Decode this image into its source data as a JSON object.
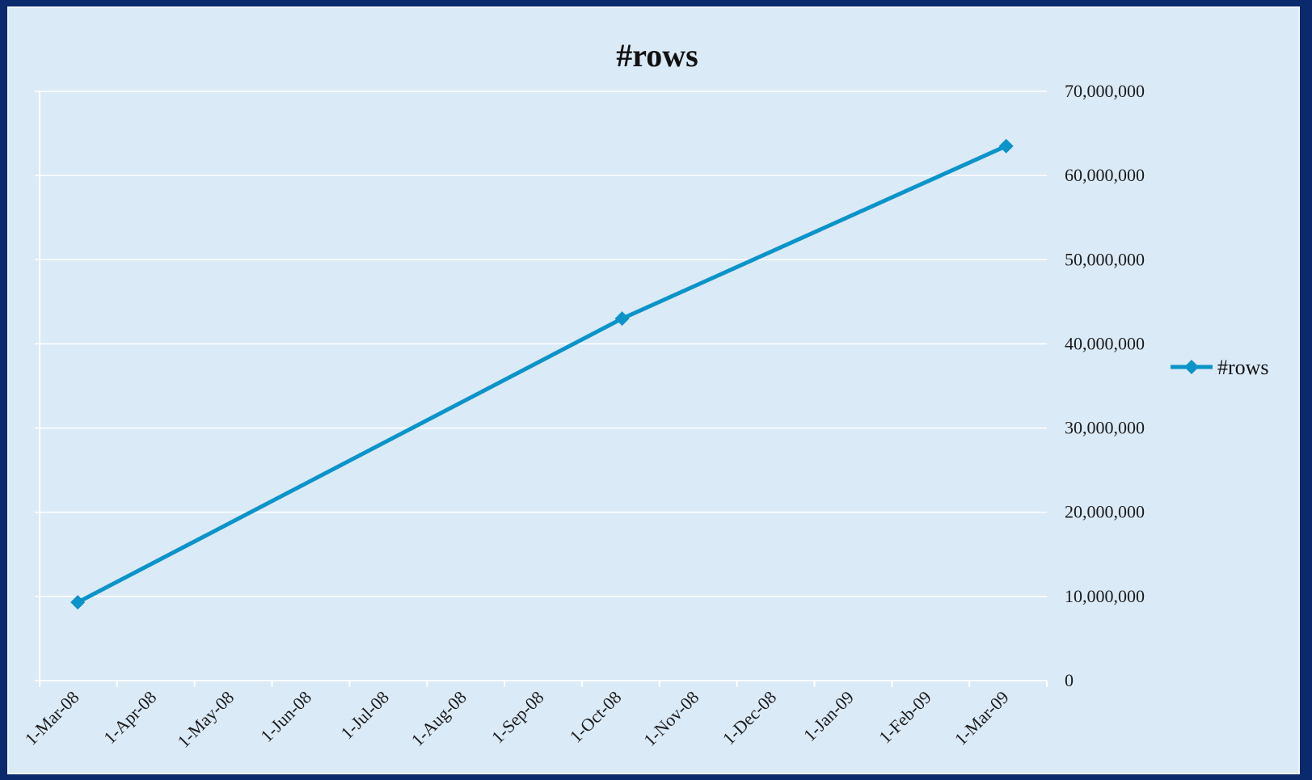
{
  "chart_data": {
    "type": "line",
    "title": "#rows",
    "xlabel": "",
    "ylabel": "",
    "x_ticks": [
      "1-Mar-08",
      "1-Apr-08",
      "1-May-08",
      "1-Jun-08",
      "1-Jul-08",
      "1-Aug-08",
      "1-Sep-08",
      "1-Oct-08",
      "1-Nov-08",
      "1-Dec-08",
      "1-Jan-09",
      "1-Feb-09",
      "1-Mar-09"
    ],
    "y_ticks": [
      "0",
      "10,000,000",
      "20,000,000",
      "30,000,000",
      "40,000,000",
      "50,000,000",
      "60,000,000",
      "70,000,000"
    ],
    "ylim": [
      0,
      70000000
    ],
    "y_axis_position": "right",
    "grid": true,
    "legend_position": "right",
    "series": [
      {
        "name": "#rows",
        "color": "#0a94c9",
        "marker": "diamond",
        "points": [
          {
            "x": "2008-03-16",
            "y": 9300000
          },
          {
            "x": "2008-10-16",
            "y": 43000000
          },
          {
            "x": "2009-03-16",
            "y": 63500000
          }
        ]
      }
    ]
  }
}
